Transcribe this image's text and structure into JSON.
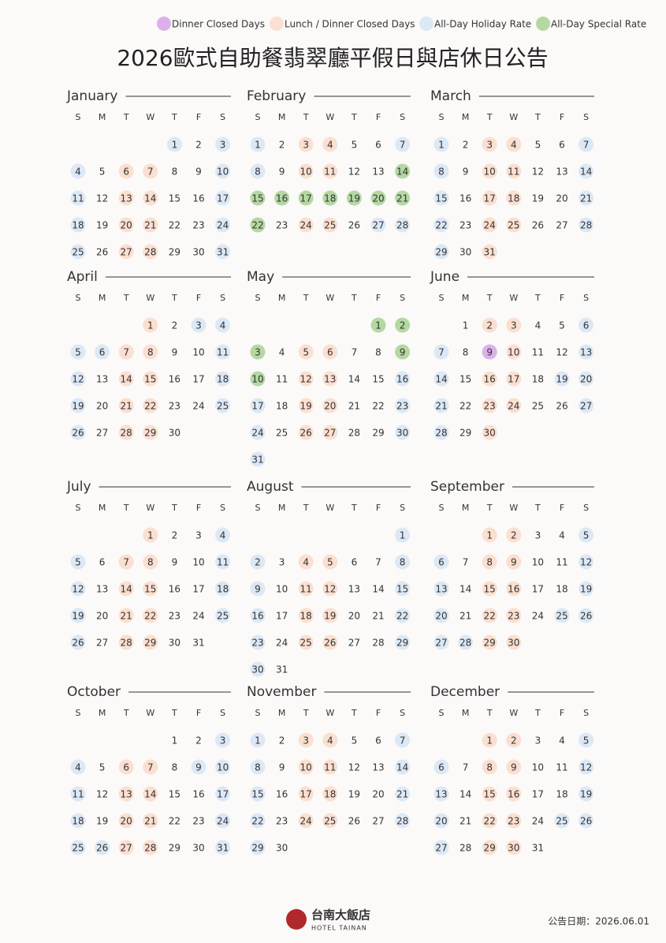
{
  "legend": [
    {
      "label": "Dinner Closed Days",
      "color": "#dcb0ea"
    },
    {
      "label": "Lunch / Dinner Closed Days",
      "color": "#fbdfd0"
    },
    {
      "label": "All-Day Holiday Rate",
      "color": "#dce8f5"
    },
    {
      "label": "All-Day Special Rate",
      "color": "#b5d8a3"
    }
  ],
  "title": "2026歐式自助餐翡翠廳平假日與店休日公告",
  "weekdays": [
    "S",
    "M",
    "T",
    "W",
    "T",
    "F",
    "S"
  ],
  "months": [
    {
      "name": "January",
      "days": [
        null,
        null,
        null,
        null,
        1,
        2,
        3,
        4,
        5,
        6,
        7,
        8,
        9,
        10,
        11,
        12,
        13,
        14,
        15,
        16,
        17,
        18,
        19,
        20,
        21,
        22,
        23,
        24,
        25,
        26,
        27,
        28,
        29,
        30,
        31
      ],
      "tags": [
        [],
        [
          6,
          7,
          13,
          14,
          20,
          21,
          27,
          28
        ],
        [
          1,
          3,
          4,
          10,
          11,
          17,
          18,
          24,
          25,
          31
        ],
        []
      ]
    },
    {
      "name": "February",
      "days": [
        1,
        2,
        3,
        4,
        5,
        6,
        7,
        8,
        9,
        10,
        11,
        12,
        13,
        14,
        15,
        16,
        17,
        18,
        19,
        20,
        21,
        22,
        23,
        24,
        25,
        26,
        27,
        28
      ],
      "tags": [
        [],
        [
          3,
          4,
          10,
          11,
          24,
          25
        ],
        [
          1,
          7,
          8,
          27,
          28
        ],
        [
          14,
          15,
          16,
          17,
          18,
          19,
          20,
          21,
          22
        ]
      ]
    },
    {
      "name": "March",
      "days": [
        1,
        2,
        3,
        4,
        5,
        6,
        7,
        8,
        9,
        10,
        11,
        12,
        13,
        14,
        15,
        16,
        17,
        18,
        19,
        20,
        21,
        22,
        23,
        24,
        25,
        26,
        27,
        28,
        29,
        30,
        31
      ],
      "tags": [
        [],
        [
          3,
          4,
          10,
          11,
          17,
          18,
          24,
          25,
          31
        ],
        [
          1,
          7,
          8,
          14,
          15,
          21,
          22,
          28,
          29
        ],
        []
      ]
    },
    {
      "name": "April",
      "days": [
        null,
        null,
        null,
        1,
        2,
        3,
        4,
        5,
        6,
        7,
        8,
        9,
        10,
        11,
        12,
        13,
        14,
        15,
        16,
        17,
        18,
        19,
        20,
        21,
        22,
        23,
        24,
        25,
        26,
        27,
        28,
        29,
        30
      ],
      "tags": [
        [],
        [
          1,
          7,
          8,
          14,
          15,
          21,
          22,
          28,
          29
        ],
        [
          3,
          4,
          5,
          6,
          11,
          12,
          18,
          19,
          25,
          26
        ],
        []
      ]
    },
    {
      "name": "May",
      "days": [
        null,
        null,
        null,
        null,
        null,
        1,
        2,
        3,
        4,
        5,
        6,
        7,
        8,
        9,
        10,
        11,
        12,
        13,
        14,
        15,
        16,
        17,
        18,
        19,
        20,
        21,
        22,
        23,
        24,
        25,
        26,
        27,
        28,
        29,
        30,
        31
      ],
      "tags": [
        [],
        [
          5,
          6,
          12,
          13,
          19,
          20,
          26,
          27
        ],
        [
          16,
          17,
          23,
          24,
          30,
          31
        ],
        [
          1,
          2,
          3,
          9,
          10
        ]
      ]
    },
    {
      "name": "June",
      "days": [
        null,
        1,
        2,
        3,
        4,
        5,
        6,
        7,
        8,
        9,
        10,
        11,
        12,
        13,
        14,
        15,
        16,
        17,
        18,
        19,
        20,
        21,
        22,
        23,
        24,
        25,
        26,
        27,
        28,
        29,
        30
      ],
      "tags": [
        [
          9
        ],
        [
          2,
          3,
          10,
          16,
          17,
          23,
          24,
          30
        ],
        [
          6,
          7,
          13,
          14,
          19,
          20,
          21,
          27,
          28
        ],
        []
      ]
    },
    {
      "name": "July",
      "days": [
        null,
        null,
        null,
        1,
        2,
        3,
        4,
        5,
        6,
        7,
        8,
        9,
        10,
        11,
        12,
        13,
        14,
        15,
        16,
        17,
        18,
        19,
        20,
        21,
        22,
        23,
        24,
        25,
        26,
        27,
        28,
        29,
        30,
        31
      ],
      "tags": [
        [],
        [
          1,
          7,
          8,
          14,
          15,
          21,
          22,
          28,
          29
        ],
        [
          4,
          5,
          11,
          12,
          18,
          19,
          25,
          26
        ],
        []
      ]
    },
    {
      "name": "August",
      "days": [
        null,
        null,
        null,
        null,
        null,
        null,
        1,
        2,
        3,
        4,
        5,
        6,
        7,
        8,
        9,
        10,
        11,
        12,
        13,
        14,
        15,
        16,
        17,
        18,
        19,
        20,
        21,
        22,
        23,
        24,
        25,
        26,
        27,
        28,
        29,
        30,
        31
      ],
      "tags": [
        [],
        [
          4,
          5,
          11,
          12,
          18,
          19,
          25,
          26
        ],
        [
          1,
          2,
          8,
          9,
          15,
          16,
          22,
          23,
          29,
          30
        ],
        []
      ]
    },
    {
      "name": "September",
      "days": [
        null,
        null,
        1,
        2,
        3,
        4,
        5,
        6,
        7,
        8,
        9,
        10,
        11,
        12,
        13,
        14,
        15,
        16,
        17,
        18,
        19,
        20,
        21,
        22,
        23,
        24,
        25,
        26,
        27,
        28,
        29,
        30
      ],
      "tags": [
        [],
        [
          1,
          2,
          8,
          9,
          15,
          16,
          22,
          23,
          29,
          30
        ],
        [
          5,
          6,
          12,
          13,
          19,
          20,
          25,
          26,
          27,
          28
        ],
        []
      ]
    },
    {
      "name": "October",
      "days": [
        null,
        null,
        null,
        null,
        1,
        2,
        3,
        4,
        5,
        6,
        7,
        8,
        9,
        10,
        11,
        12,
        13,
        14,
        15,
        16,
        17,
        18,
        19,
        20,
        21,
        22,
        23,
        24,
        25,
        26,
        27,
        28,
        29,
        30,
        31
      ],
      "tags": [
        [],
        [
          6,
          7,
          13,
          14,
          20,
          21,
          27,
          28
        ],
        [
          3,
          4,
          9,
          10,
          11,
          17,
          18,
          24,
          25,
          26,
          31
        ],
        []
      ]
    },
    {
      "name": "November",
      "days": [
        1,
        2,
        3,
        4,
        5,
        6,
        7,
        8,
        9,
        10,
        11,
        12,
        13,
        14,
        15,
        16,
        17,
        18,
        19,
        20,
        21,
        22,
        23,
        24,
        25,
        26,
        27,
        28,
        29,
        30
      ],
      "tags": [
        [],
        [
          3,
          4,
          10,
          11,
          17,
          18,
          24,
          25
        ],
        [
          1,
          7,
          8,
          14,
          15,
          21,
          22,
          28,
          29
        ],
        []
      ]
    },
    {
      "name": "December",
      "days": [
        null,
        null,
        1,
        2,
        3,
        4,
        5,
        6,
        7,
        8,
        9,
        10,
        11,
        12,
        13,
        14,
        15,
        16,
        17,
        18,
        19,
        20,
        21,
        22,
        23,
        24,
        25,
        26,
        27,
        28,
        29,
        30,
        31
      ],
      "tags": [
        [],
        [
          1,
          2,
          8,
          9,
          15,
          16,
          22,
          23,
          29,
          30
        ],
        [
          5,
          6,
          12,
          13,
          19,
          20,
          25,
          26,
          27
        ],
        []
      ]
    }
  ],
  "footer": {
    "logo": "台南大飯店",
    "logo_en": "HOTEL TAINAN",
    "date": "公告日期：2026.06.01"
  }
}
